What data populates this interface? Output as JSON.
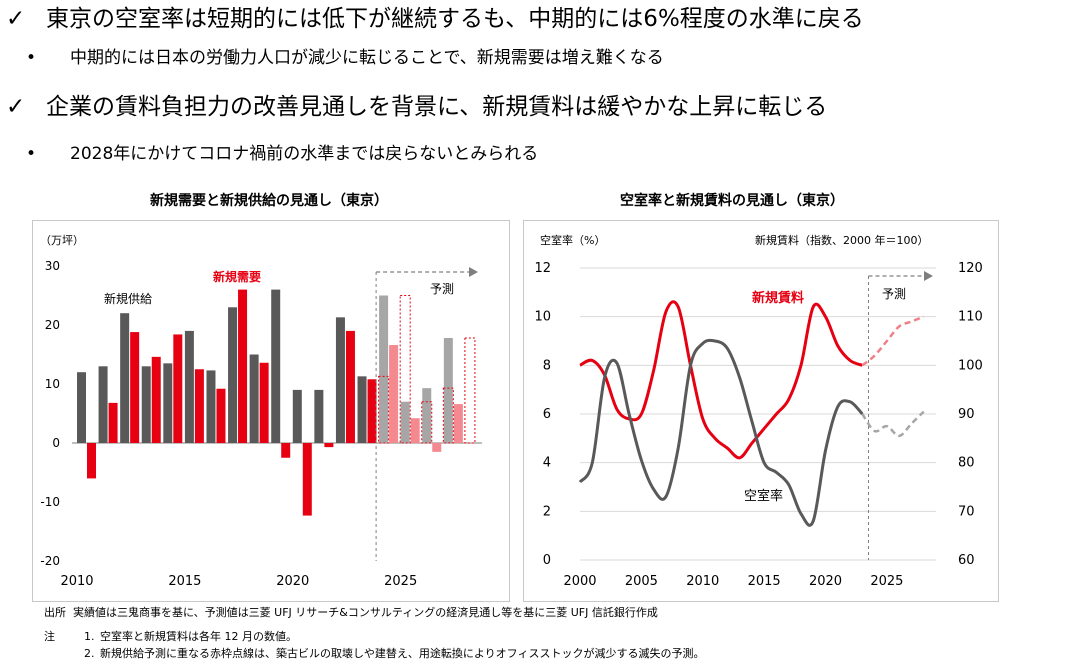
{
  "bullets": [
    {
      "mark": "✓",
      "text": "東京の空室率は短期的には低下が継続するも、中期的には6%程度の水準に戻る",
      "sub": "中期的には日本の労働力人口が減少に転じることで、新規需要は増え難くなる"
    },
    {
      "mark": "✓",
      "text": "企業の賃料負担力の改善見通しを背景に、新規賃料は緩やかな上昇に転じる",
      "sub": "2028年にかけてコロナ禍前の水準までは戻らないとみられる"
    }
  ],
  "sub_mark": "•",
  "footer": {
    "source_label": "出所",
    "source": "実績値は三鬼商事を基に、予測値は三菱 UFJ リサーチ&コンサルティングの経済見通し等を基に三菱 UFJ 信託銀行作成",
    "notes_label": "注",
    "notes": [
      {
        "num": "1.",
        "text": "空室率と新規賃料は各年 12 月の数値。"
      },
      {
        "num": "2.",
        "text": "新規供給予測に重なる赤枠点線は、築古ビルの取壊しや建替え、用途転換によりオフィスストックが減少する滅失の予測。"
      }
    ]
  },
  "chart_data": [
    {
      "type": "bar",
      "title": "新規需要と新規供給の見通し（東京）",
      "ylabel": "（万坪）",
      "ylim": [
        -20,
        30
      ],
      "yticks": [
        30,
        20,
        10,
        0,
        -10,
        -20
      ],
      "x": [
        2010,
        2011,
        2012,
        2013,
        2014,
        2015,
        2016,
        2017,
        2018,
        2019,
        2020,
        2021,
        2022,
        2023,
        2024,
        2025,
        2026,
        2027,
        2028
      ],
      "xticks": [
        2010,
        2015,
        2020,
        2025
      ],
      "forecast_from": 2024,
      "forecast_label": "予測",
      "series": [
        {
          "name": "新規供給",
          "color": "#595959",
          "forecast_color": "#a6a6a6",
          "values": [
            12,
            13,
            22,
            13,
            13.5,
            19,
            12.3,
            23,
            15,
            26,
            9,
            9,
            21.3,
            11.3,
            25,
            7,
            9.3,
            17.8,
            null
          ]
        },
        {
          "name": "新規需要",
          "color": "#e60012",
          "forecast_color": "#f4898f",
          "values": [
            -6,
            6.8,
            18.8,
            14.6,
            18.4,
            12.5,
            9.2,
            26,
            13.6,
            -2.5,
            -12.3,
            -0.7,
            19,
            10.8,
            16.6,
            4.2,
            -1.5,
            6.6,
            null
          ]
        }
      ],
      "demolition_overlay": [
        2024,
        2025,
        2026,
        2027,
        2028
      ],
      "demolition_values": [
        11.3,
        25,
        7,
        9.3,
        17.8
      ]
    },
    {
      "type": "line",
      "title": "空室率と新規賃料の見通し（東京）",
      "ylabel_left": "空室率（%）",
      "ylabel_right": "新規賃料（指数、2000 年＝100）",
      "ylim_left": [
        0,
        12
      ],
      "ylim_right": [
        60,
        120
      ],
      "yticks_left": [
        12,
        10,
        8,
        6,
        4,
        2,
        0
      ],
      "yticks_right": [
        120,
        110,
        100,
        90,
        80,
        70,
        60
      ],
      "xlim": [
        2000,
        2029
      ],
      "xticks": [
        2000,
        2005,
        2010,
        2015,
        2020,
        2025
      ],
      "forecast_from": 2023.5,
      "forecast_label": "予測",
      "series": [
        {
          "name": "新規賃料",
          "axis": "right",
          "color": "#e60012",
          "x": [
            2000,
            2001,
            2002,
            2003,
            2004,
            2005,
            2006,
            2007,
            2008,
            2009,
            2010,
            2011,
            2012,
            2013,
            2014,
            2015,
            2016,
            2017,
            2018,
            2019,
            2020,
            2021,
            2022,
            2023
          ],
          "y": [
            100,
            101,
            98,
            91,
            89,
            90,
            99,
            111,
            112,
            100,
            89,
            85,
            83,
            81,
            84,
            87,
            90,
            93,
            100,
            112,
            110,
            104,
            101,
            100
          ],
          "forecast_x": [
            2023,
            2024,
            2025,
            2026,
            2027,
            2028
          ],
          "forecast_y": [
            100,
            102,
            105,
            108,
            109,
            110
          ]
        },
        {
          "name": "空室率",
          "axis": "left",
          "color": "#595959",
          "x": [
            2000,
            2001,
            2002,
            2003,
            2004,
            2005,
            2006,
            2007,
            2008,
            2009,
            2010,
            2011,
            2012,
            2013,
            2014,
            2015,
            2016,
            2017,
            2018,
            2019,
            2020,
            2021,
            2022,
            2023
          ],
          "y": [
            3.2,
            4.0,
            7.5,
            8.1,
            6.0,
            4.1,
            2.9,
            2.6,
            4.6,
            8.0,
            8.9,
            9.0,
            8.7,
            7.5,
            5.7,
            4.0,
            3.6,
            3.1,
            1.9,
            1.6,
            4.5,
            6.3,
            6.5,
            6.0
          ],
          "forecast_x": [
            2023,
            2024,
            2025,
            2026,
            2027,
            2028
          ],
          "forecast_y": [
            6.0,
            5.3,
            5.5,
            5.1,
            5.6,
            6.1
          ]
        }
      ]
    }
  ]
}
